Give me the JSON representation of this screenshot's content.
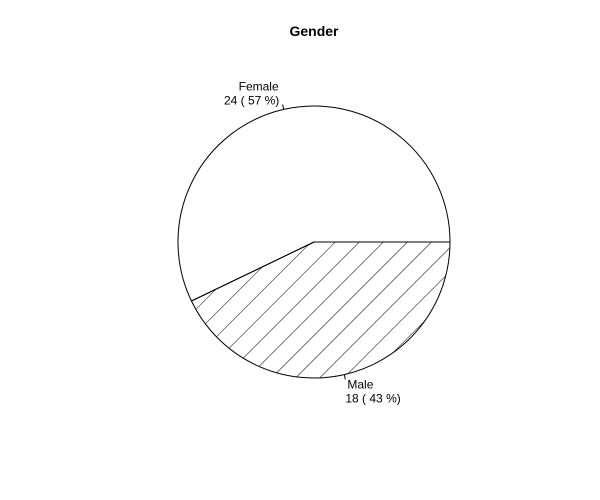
{
  "chart_data": {
    "type": "pie",
    "title": "Gender",
    "categories": [
      "Female",
      "Male"
    ],
    "values": [
      24,
      18
    ],
    "percents": [
      57,
      43
    ],
    "value_labels": [
      "24 ( 57 %)",
      "18 ( 43 %)"
    ],
    "fills": [
      "none",
      "hatched"
    ]
  }
}
